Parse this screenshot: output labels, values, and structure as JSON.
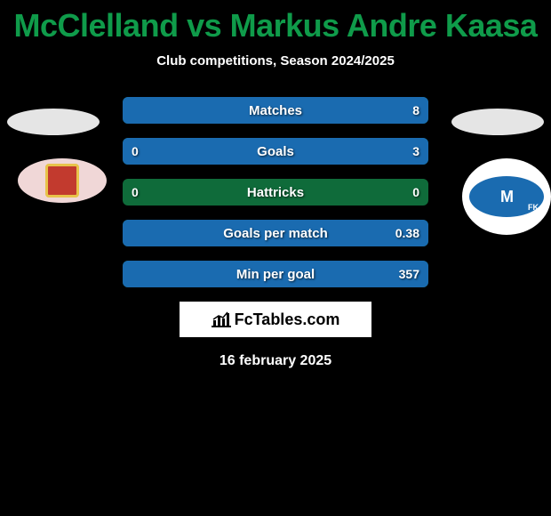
{
  "title_color": "#0f9b4a",
  "player_left": "McClelland",
  "vs": "vs",
  "player_right": "Markus Andre Kaasa",
  "subtitle": "Club competitions, Season 2024/2025",
  "club_right_initial": "M",
  "club_right_suffix": "FK",
  "bar": {
    "track_color": "#0f6b3a",
    "left_fill_color": "#c23a2e",
    "right_fill_color": "#1a6bb0",
    "height": 30,
    "gap": 16,
    "radius": 6,
    "font_size": 15,
    "val_font_size": 14
  },
  "rows": [
    {
      "label": "Matches",
      "left": "",
      "right": "8",
      "left_pct": 0,
      "right_pct": 100
    },
    {
      "label": "Goals",
      "left": "0",
      "right": "3",
      "left_pct": 0,
      "right_pct": 100
    },
    {
      "label": "Hattricks",
      "left": "0",
      "right": "0",
      "left_pct": 0,
      "right_pct": 0
    },
    {
      "label": "Goals per match",
      "left": "",
      "right": "0.38",
      "left_pct": 0,
      "right_pct": 100
    },
    {
      "label": "Min per goal",
      "left": "",
      "right": "357",
      "left_pct": 0,
      "right_pct": 100
    }
  ],
  "brand": "FcTables.com",
  "date": "16 february 2025"
}
